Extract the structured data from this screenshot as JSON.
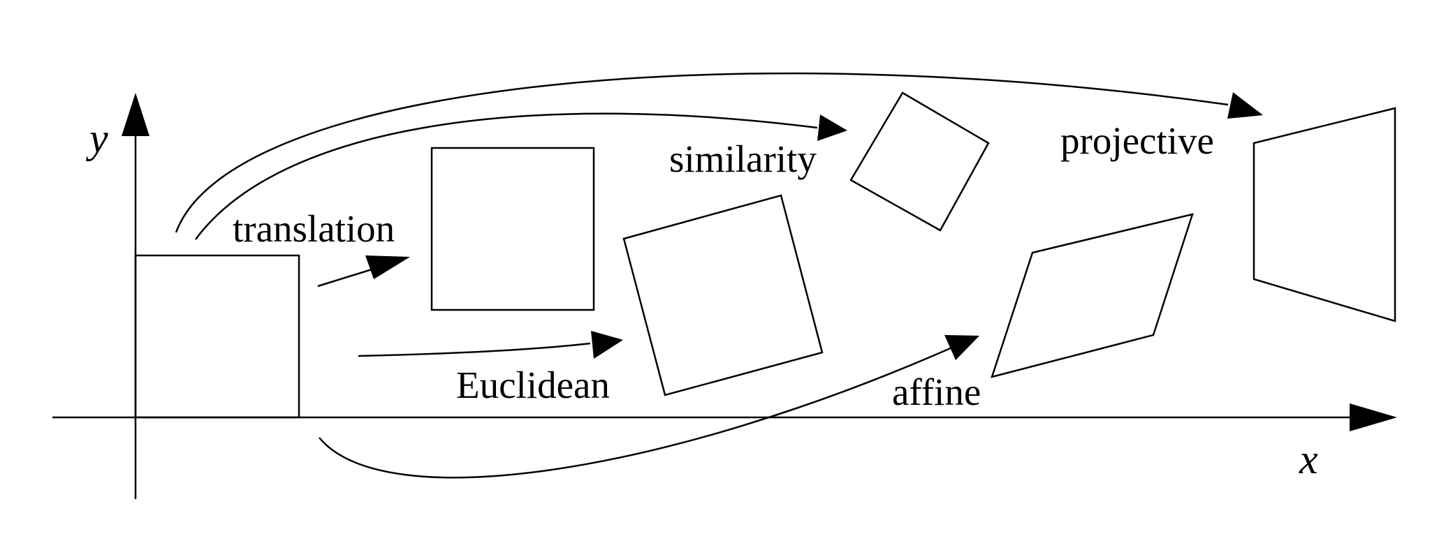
{
  "axes": {
    "x_label": "x",
    "y_label": "y"
  },
  "transformations": {
    "translation": "translation",
    "euclidean": "Euclidean",
    "similarity": "similarity",
    "affine": "affine",
    "projective": "projective"
  },
  "colors": {
    "stroke": "#000000",
    "background": "#ffffff"
  }
}
